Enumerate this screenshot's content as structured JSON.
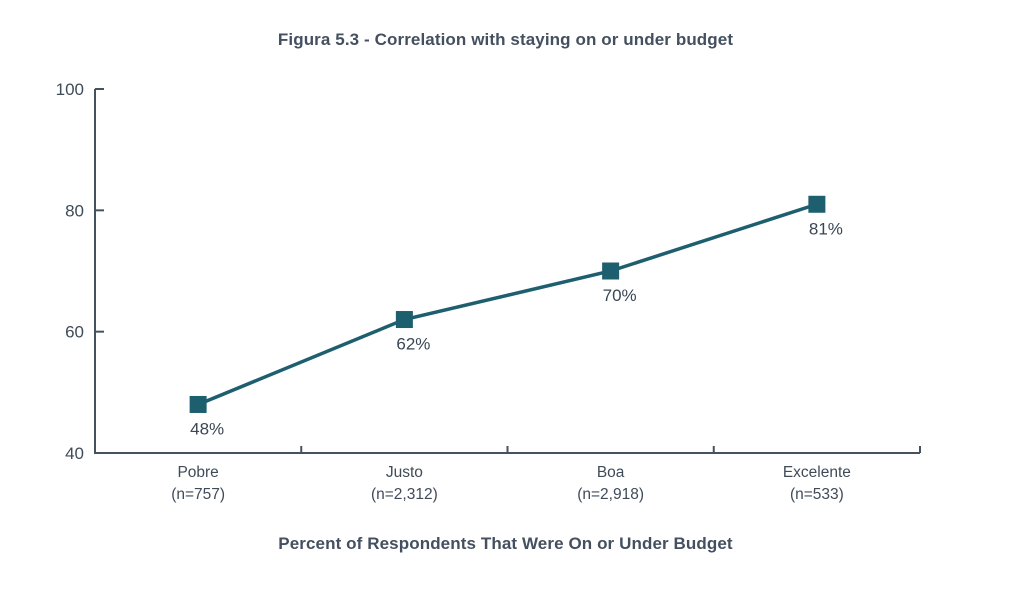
{
  "page": {
    "background": "#ffffff"
  },
  "chart_data": {
    "type": "line",
    "title": "Figura 5.3 - Correlation with staying on or under budget",
    "xlabel": "Percent of Respondents That Were On or Under Budget",
    "ylabel": "",
    "categories": [
      "Pobre",
      "Justo",
      "Boa",
      "Excelente"
    ],
    "category_sublabels": [
      "(n=757)",
      "(n=2,312)",
      "(n=2,918)",
      "(n=533)"
    ],
    "values": [
      48,
      62,
      70,
      81
    ],
    "data_labels": [
      "48%",
      "62%",
      "70%",
      "81%"
    ],
    "ylim": [
      40,
      100
    ],
    "yticks": [
      100,
      80,
      60,
      40
    ],
    "grid": false,
    "legend": "none",
    "marker": "square",
    "colors": {
      "line": "#1d5f6e",
      "marker": "#1d5f6e",
      "axis": "#47525f",
      "tick_text": "#3f4b59",
      "data_label_text": "#3a4654",
      "title_text": "#44505f"
    }
  }
}
